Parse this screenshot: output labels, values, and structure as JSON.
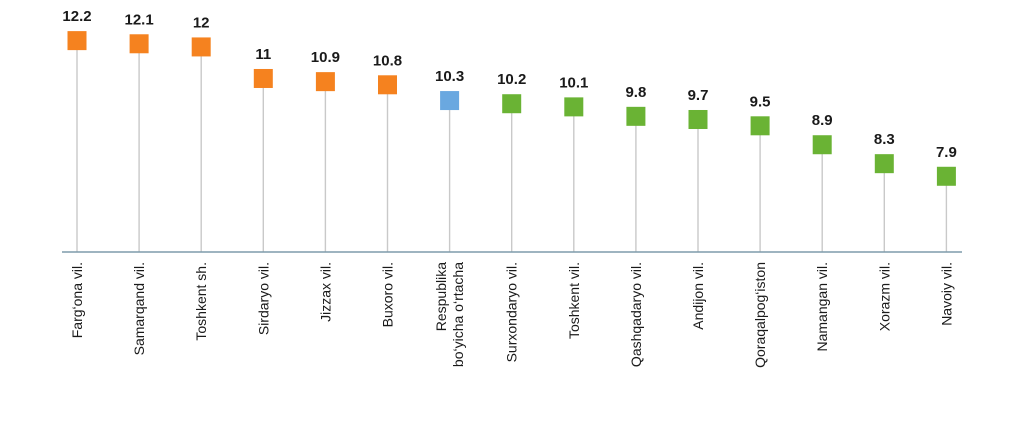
{
  "chart_data": {
    "type": "lollipop",
    "title": "",
    "xlabel": "",
    "ylabel": "",
    "ylim": [
      5.5,
      12.6
    ],
    "grid": false,
    "legend": "none",
    "categories": [
      [
        "Farg‘ona vil."
      ],
      [
        "Samarqand vil."
      ],
      [
        "Toshkent sh."
      ],
      [
        "Sirdaryo vil."
      ],
      [
        "Jizzax vil."
      ],
      [
        "Buxoro vil."
      ],
      [
        "Respublika",
        "bo‘yicha o‘rtacha"
      ],
      [
        "Surxondaryo vil."
      ],
      [
        "Toshkent vil."
      ],
      [
        "Qashqadaryo vil."
      ],
      [
        "Andijon vil."
      ],
      [
        "Qoraqalpog‘iston"
      ],
      [
        "Namangan vil."
      ],
      [
        "Xorazm vil."
      ],
      [
        "Navoiy vil."
      ]
    ],
    "values": [
      12.2,
      12.1,
      12,
      11,
      10.9,
      10.8,
      10.3,
      10.2,
      10.1,
      9.8,
      9.7,
      9.5,
      8.9,
      8.3,
      7.9
    ],
    "value_labels": [
      "12.2",
      "12.1",
      "12",
      "11",
      "10.9",
      "10.8",
      "10.3",
      "10.2",
      "10.1",
      "9.8",
      "9.7",
      "9.5",
      "8.9",
      "8.3",
      "7.9"
    ],
    "marker_groups": [
      "high",
      "high",
      "high",
      "high",
      "high",
      "high",
      "average",
      "low",
      "low",
      "low",
      "low",
      "low",
      "low",
      "low",
      "low"
    ],
    "colors": {
      "high": "#f5821f",
      "average": "#6aa8e0",
      "low": "#6ab334",
      "stem": "#c9c9c9",
      "axis": "#7f9bab"
    }
  }
}
